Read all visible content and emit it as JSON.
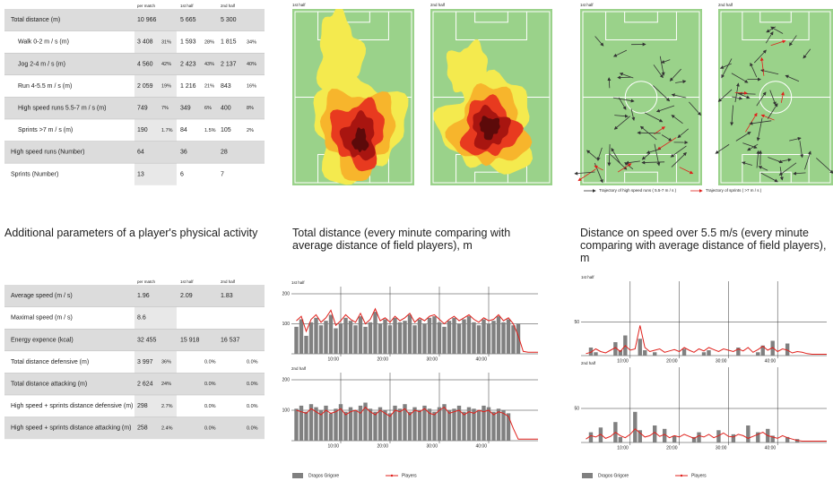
{
  "table1": {
    "header": [
      "per match",
      "1st half",
      "2nd half"
    ],
    "rows": [
      [
        "Total distance (m)",
        "10 966",
        null,
        "5 665",
        null,
        "5 300",
        null
      ],
      [
        "Walk 0-2 m / s (m)",
        "3 408",
        "31%",
        "1 593",
        "28%",
        "1 815",
        "34%"
      ],
      [
        "Jog 2-4 m / s (m)",
        "4 560",
        "42%",
        "2 423",
        "43%",
        "2 137",
        "40%"
      ],
      [
        "Run 4-5.5 m / s (m)",
        "2 059",
        "19%",
        "1 216",
        "21%",
        "843",
        "16%"
      ],
      [
        "High speed runs 5.5-7 m / s (m)",
        "749",
        "7%",
        "349",
        "6%",
        "400",
        "8%"
      ],
      [
        "Sprints >7 m / s (m)",
        "190",
        "1.7%",
        "84",
        "1.5%",
        "105",
        "2%"
      ],
      [
        "High speed runs (Number)",
        "64",
        null,
        "36",
        null,
        "28",
        null
      ],
      [
        "Sprints (Number)",
        "13",
        null,
        "6",
        null,
        "7",
        null
      ]
    ]
  },
  "table2": {
    "title": "Additional parameters of a player's physical activity",
    "header": [
      "per match",
      "1st half",
      "2nd half"
    ],
    "rows": [
      [
        "Average speed (m / s)",
        "1.96",
        null,
        "2.09",
        null,
        "1.83",
        null
      ],
      [
        "Maximal speed (m / s)",
        "8.6",
        null,
        null,
        null,
        null,
        null
      ],
      [
        "Energy expence (kcal)",
        "32 455",
        null,
        "15 918",
        null,
        "16 537",
        null
      ],
      [
        "Total distance defensive (m)",
        "3 997",
        "36%",
        null,
        "0.0%",
        null,
        "0.0%"
      ],
      [
        "Total distance attacking (m)",
        "2 624",
        "24%",
        null,
        "0.0%",
        null,
        "0.0%"
      ],
      [
        "High speed + sprints distance defensive (m)",
        "298",
        "2.7%",
        null,
        "0.0%",
        null,
        "0.0%"
      ],
      [
        "High speed + sprints distance attacking (m)",
        "258",
        "2.4%",
        null,
        "0.0%",
        null,
        "0.0%"
      ]
    ]
  },
  "heatmaps": {
    "panels": [
      "1st half",
      "2nd half"
    ]
  },
  "trajectories": {
    "panels": [
      "1st half",
      "2nd half"
    ],
    "legend": [
      "Trajectory of high speed runs ( 5.5-7 m / s )",
      "Trajectory of sprints ( >7 m / s )"
    ]
  },
  "chart_data": [
    {
      "type": "bar",
      "title": "Total distance (every minute comparing with average distance of field players), m",
      "subtitle": "1st half",
      "x": [
        1,
        2,
        3,
        4,
        5,
        6,
        7,
        8,
        9,
        10,
        11,
        12,
        13,
        14,
        15,
        16,
        17,
        18,
        19,
        20,
        21,
        22,
        23,
        24,
        25,
        26,
        27,
        28,
        29,
        30,
        31,
        32,
        33,
        34,
        35,
        36,
        37,
        38,
        39,
        40,
        41,
        42,
        43,
        44,
        45,
        46,
        47,
        48,
        49,
        50
      ],
      "xlim": [
        0,
        50
      ],
      "xticks": [
        {
          "value": 10,
          "label": "10:00"
        },
        {
          "value": 20,
          "label": "20:00"
        },
        {
          "value": 30,
          "label": "30:00"
        },
        {
          "value": 40,
          "label": "40:00"
        }
      ],
      "ylim": [
        0,
        200
      ],
      "yticks": [
        100,
        200
      ],
      "series": [
        {
          "color": "#808080",
          "values": [
            90,
            115,
            60,
            105,
            120,
            95,
            110,
            130,
            85,
            100,
            120,
            110,
            95,
            125,
            90,
            105,
            140,
            100,
            115,
            95,
            120,
            105,
            110,
            130,
            95,
            115,
            100,
            120,
            125,
            105,
            90,
            110,
            120,
            100,
            115,
            125,
            105,
            95,
            115,
            100,
            110,
            125,
            105,
            115,
            95,
            100,
            null,
            null,
            null,
            null
          ]
        },
        {
          "color": "#e0201b",
          "type": "line",
          "values": [
            110,
            125,
            75,
            115,
            130,
            105,
            120,
            145,
            95,
            110,
            130,
            115,
            105,
            135,
            100,
            115,
            150,
            110,
            120,
            105,
            125,
            110,
            120,
            135,
            105,
            120,
            110,
            125,
            130,
            115,
            100,
            115,
            125,
            110,
            120,
            130,
            115,
            105,
            120,
            110,
            115,
            130,
            110,
            120,
            100,
            60,
            8,
            5,
            5,
            5
          ]
        }
      ]
    },
    {
      "type": "bar",
      "subtitle": "2nd half",
      "x": [
        1,
        2,
        3,
        4,
        5,
        6,
        7,
        8,
        9,
        10,
        11,
        12,
        13,
        14,
        15,
        16,
        17,
        18,
        19,
        20,
        21,
        22,
        23,
        24,
        25,
        26,
        27,
        28,
        29,
        30,
        31,
        32,
        33,
        34,
        35,
        36,
        37,
        38,
        39,
        40,
        41,
        42,
        43,
        44,
        45,
        46,
        47,
        48,
        49,
        50
      ],
      "xlim": [
        0,
        50
      ],
      "xticks": [
        {
          "value": 10,
          "label": "10:00"
        },
        {
          "value": 20,
          "label": "20:00"
        },
        {
          "value": 30,
          "label": "30:00"
        },
        {
          "value": 40,
          "label": "40:00"
        }
      ],
      "ylim": [
        0,
        200
      ],
      "yticks": [
        100,
        200
      ],
      "series": [
        {
          "name": "Dragos Grigore",
          "color": "#808080",
          "values": [
            105,
            115,
            95,
            120,
            110,
            100,
            115,
            90,
            105,
            120,
            95,
            110,
            100,
            115,
            125,
            105,
            95,
            110,
            100,
            90,
            115,
            105,
            120,
            95,
            110,
            100,
            115,
            105,
            95,
            110,
            120,
            100,
            105,
            115,
            95,
            110,
            105,
            100,
            115,
            110,
            95,
            105,
            100,
            90,
            null,
            null,
            null,
            null,
            null,
            null
          ]
        },
        {
          "name": "Players",
          "color": "#e0201b",
          "type": "line",
          "values": [
            100,
            95,
            90,
            105,
            95,
            85,
            100,
            90,
            95,
            105,
            85,
            95,
            100,
            90,
            110,
            95,
            85,
            100,
            90,
            80,
            100,
            95,
            105,
            85,
            100,
            95,
            105,
            90,
            85,
            100,
            110,
            90,
            95,
            100,
            85,
            95,
            90,
            100,
            95,
            100,
            85,
            95,
            90,
            80,
            40,
            5,
            5,
            5,
            5,
            5
          ]
        }
      ]
    },
    {
      "type": "bar",
      "title": "Distance on speed over 5.5 m/s (every minute comparing with average distance of field players), m",
      "subtitle": "1st half",
      "x": [
        1,
        2,
        3,
        4,
        5,
        6,
        7,
        8,
        9,
        10,
        11,
        12,
        13,
        14,
        15,
        16,
        17,
        18,
        19,
        20,
        21,
        22,
        23,
        24,
        25,
        26,
        27,
        28,
        29,
        30,
        31,
        32,
        33,
        34,
        35,
        36,
        37,
        38,
        39,
        40,
        41,
        42,
        43,
        44,
        45,
        46,
        47,
        48,
        49,
        50
      ],
      "xlim": [
        0,
        50
      ],
      "xticks": [
        {
          "value": 10,
          "label": "10:00"
        },
        {
          "value": 20,
          "label": "20:00"
        },
        {
          "value": 30,
          "label": "30:00"
        },
        {
          "value": 40,
          "label": "40:00"
        }
      ],
      "ylim": [
        0,
        100
      ],
      "yticks": [
        50
      ],
      "series": [
        {
          "color": "#808080",
          "values": [
            0,
            12,
            5,
            0,
            0,
            0,
            20,
            8,
            30,
            0,
            0,
            25,
            8,
            0,
            5,
            0,
            0,
            0,
            0,
            0,
            10,
            0,
            0,
            0,
            5,
            8,
            0,
            0,
            0,
            0,
            0,
            12,
            0,
            0,
            0,
            5,
            15,
            0,
            22,
            0,
            0,
            18,
            0,
            0,
            0,
            0,
            null,
            null,
            null,
            null
          ]
        },
        {
          "color": "#e0201b",
          "type": "line",
          "values": [
            3,
            5,
            10,
            6,
            4,
            8,
            12,
            6,
            15,
            8,
            10,
            45,
            12,
            6,
            8,
            10,
            5,
            7,
            9,
            6,
            12,
            8,
            5,
            10,
            7,
            12,
            9,
            6,
            10,
            8,
            6,
            10,
            7,
            12,
            5,
            9,
            14,
            8,
            12,
            6,
            10,
            8,
            4,
            6,
            5,
            3,
            2,
            2,
            2,
            2
          ]
        }
      ]
    },
    {
      "type": "bar",
      "subtitle": "2nd half",
      "x": [
        1,
        2,
        3,
        4,
        5,
        6,
        7,
        8,
        9,
        10,
        11,
        12,
        13,
        14,
        15,
        16,
        17,
        18,
        19,
        20,
        21,
        22,
        23,
        24,
        25,
        26,
        27,
        28,
        29,
        30,
        31,
        32,
        33,
        34,
        35,
        36,
        37,
        38,
        39,
        40,
        41,
        42,
        43,
        44,
        45,
        46,
        47,
        48,
        49,
        50
      ],
      "xlim": [
        0,
        50
      ],
      "xticks": [
        {
          "value": 10,
          "label": "10:00"
        },
        {
          "value": 20,
          "label": "20:00"
        },
        {
          "value": 30,
          "label": "30:00"
        },
        {
          "value": 40,
          "label": "40:00"
        }
      ],
      "ylim": [
        0,
        100
      ],
      "yticks": [
        50
      ],
      "series": [
        {
          "name": "Dragos Grigore",
          "color": "#808080",
          "values": [
            0,
            15,
            0,
            22,
            0,
            0,
            30,
            8,
            0,
            0,
            45,
            18,
            0,
            0,
            25,
            0,
            20,
            0,
            10,
            0,
            0,
            0,
            8,
            15,
            0,
            0,
            0,
            18,
            0,
            0,
            12,
            0,
            0,
            25,
            0,
            15,
            0,
            20,
            10,
            0,
            0,
            8,
            0,
            5,
            null,
            null,
            null,
            null,
            null,
            null
          ]
        },
        {
          "name": "Players",
          "color": "#e0201b",
          "type": "line",
          "values": [
            5,
            10,
            8,
            12,
            6,
            9,
            15,
            10,
            7,
            12,
            20,
            14,
            8,
            10,
            15,
            9,
            12,
            7,
            10,
            8,
            12,
            9,
            6,
            10,
            8,
            12,
            7,
            10,
            14,
            9,
            8,
            12,
            10,
            6,
            9,
            12,
            15,
            10,
            8,
            6,
            10,
            7,
            5,
            3,
            2,
            2,
            2,
            2,
            2,
            2
          ]
        }
      ]
    }
  ]
}
